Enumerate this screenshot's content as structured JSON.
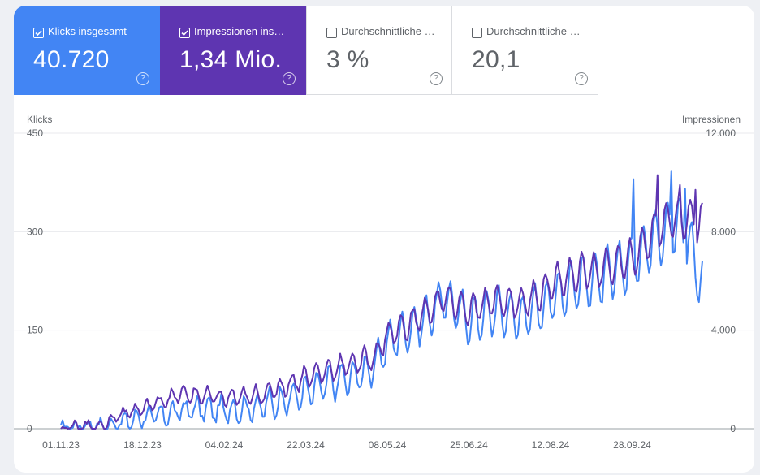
{
  "metrics": [
    {
      "label": "Klicks insgesamt",
      "value": "40.720",
      "checked": true,
      "color": "#4285f4"
    },
    {
      "label": "Impressionen ins…",
      "value": "1,34 Mio.",
      "checked": true,
      "color": "#5e35b1"
    },
    {
      "label": "Durchschnittliche …",
      "value": "3 %",
      "checked": false
    },
    {
      "label": "Durchschnittliche …",
      "value": "20,1",
      "checked": false
    }
  ],
  "help_glyph": "?",
  "chart_data": {
    "type": "line",
    "left_axis": {
      "label": "Klicks",
      "ticks": [
        "450",
        "300",
        "150",
        "0"
      ],
      "range": [
        0,
        450
      ]
    },
    "right_axis": {
      "label": "Impressionen",
      "ticks": [
        "12.000",
        "8.000",
        "4.000",
        "0"
      ],
      "range": [
        0,
        12000
      ]
    },
    "x_tick_labels": [
      "01.11.23",
      "18.12.23",
      "04.02.24",
      "22.03.24",
      "08.05.24",
      "25.06.24",
      "12.08.24",
      "28.09.24"
    ],
    "x_start": "2023-11-01",
    "x_end": "2024-11-07",
    "gridlines": true,
    "series": [
      {
        "axis": "left",
        "color": "#4285f4",
        "anchors": [
          [
            "2023-11-01",
            0
          ],
          [
            "2023-11-15",
            4
          ],
          [
            "2023-11-25",
            2
          ],
          [
            "2023-12-05",
            8
          ],
          [
            "2023-12-18",
            18
          ],
          [
            "2023-12-30",
            20
          ],
          [
            "2024-01-10",
            28
          ],
          [
            "2024-01-20",
            30
          ],
          [
            "2024-02-04",
            28
          ],
          [
            "2024-02-20",
            32
          ],
          [
            "2024-03-05",
            40
          ],
          [
            "2024-03-22",
            55
          ],
          [
            "2024-04-05",
            70
          ],
          [
            "2024-04-20",
            80
          ],
          [
            "2024-05-01",
            95
          ],
          [
            "2024-05-08",
            130
          ],
          [
            "2024-05-20",
            150
          ],
          [
            "2024-06-01",
            170
          ],
          [
            "2024-06-10",
            200
          ],
          [
            "2024-06-25",
            165
          ],
          [
            "2024-07-10",
            180
          ],
          [
            "2024-07-25",
            170
          ],
          [
            "2024-08-05",
            185
          ],
          [
            "2024-08-12",
            200
          ],
          [
            "2024-08-25",
            220
          ],
          [
            "2024-09-10",
            230
          ],
          [
            "2024-09-28",
            255
          ],
          [
            "2024-10-10",
            290
          ],
          [
            "2024-10-20",
            310
          ],
          [
            "2024-10-28",
            300
          ],
          [
            "2024-11-07",
            220
          ]
        ],
        "amplitude": 28,
        "peaks": [
          [
            "2024-10-20",
            393
          ],
          [
            "2024-09-28",
            380
          ],
          [
            "2024-10-28",
            365
          ]
        ]
      },
      {
        "axis": "right",
        "color": "#5e35b1",
        "anchors": [
          [
            "2023-11-01",
            0
          ],
          [
            "2023-11-15",
            120
          ],
          [
            "2023-11-25",
            80
          ],
          [
            "2023-12-05",
            600
          ],
          [
            "2023-12-18",
            800
          ],
          [
            "2023-12-30",
            1150
          ],
          [
            "2024-01-10",
            1400
          ],
          [
            "2024-01-20",
            1350
          ],
          [
            "2024-02-04",
            1250
          ],
          [
            "2024-02-20",
            1300
          ],
          [
            "2024-03-05",
            1600
          ],
          [
            "2024-03-22",
            2100
          ],
          [
            "2024-04-05",
            2400
          ],
          [
            "2024-04-20",
            2700
          ],
          [
            "2024-05-01",
            2900
          ],
          [
            "2024-05-08",
            3800
          ],
          [
            "2024-05-20",
            4200
          ],
          [
            "2024-06-01",
            4800
          ],
          [
            "2024-06-10",
            5300
          ],
          [
            "2024-06-25",
            4800
          ],
          [
            "2024-07-10",
            5200
          ],
          [
            "2024-07-25",
            5100
          ],
          [
            "2024-08-05",
            5500
          ],
          [
            "2024-08-12",
            5900
          ],
          [
            "2024-08-25",
            6300
          ],
          [
            "2024-09-10",
            6500
          ],
          [
            "2024-09-28",
            6900
          ],
          [
            "2024-10-10",
            8000
          ],
          [
            "2024-10-20",
            8600
          ],
          [
            "2024-10-28",
            8500
          ],
          [
            "2024-11-07",
            8400
          ]
        ],
        "amplitude": 500,
        "peaks": [
          [
            "2024-10-12",
            10300
          ],
          [
            "2024-10-25",
            9900
          ],
          [
            "2024-11-03",
            9700
          ]
        ]
      }
    ]
  }
}
